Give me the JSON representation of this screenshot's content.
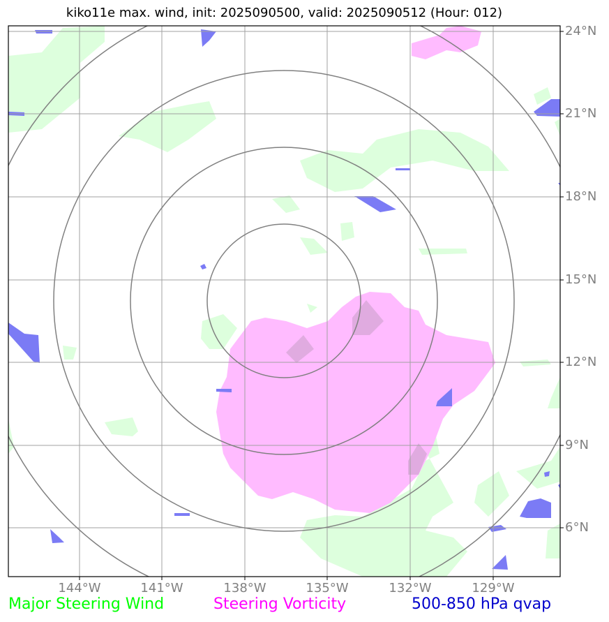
{
  "title": "kiko11e max. wind, init: 2025090500, valid: 2025090512 (Hour: 012)",
  "latitudes": [
    {
      "label": "24°N",
      "value": 24
    },
    {
      "label": "21°N",
      "value": 21
    },
    {
      "label": "18°N",
      "value": 18
    },
    {
      "label": "15°N",
      "value": 15
    },
    {
      "label": "12°N",
      "value": 12
    },
    {
      "label": "9°N",
      "value": 9
    },
    {
      "label": "6°N",
      "value": 6
    }
  ],
  "longitudes": [
    {
      "label": "144°W",
      "value": -144
    },
    {
      "label": "141°W",
      "value": -141
    },
    {
      "label": "138°W",
      "value": -138
    },
    {
      "label": "135°W",
      "value": -135
    },
    {
      "label": "132°W",
      "value": -132
    },
    {
      "label": "129°W",
      "value": -129
    }
  ],
  "legend": {
    "wind": "Major Steering Wind",
    "vorticity": "Steering Vorticity",
    "qvap": "500-850 hPa qvap"
  },
  "colors": {
    "wind": "#00ff00",
    "vorticity": "#ff00ff",
    "qvap": "#0000cc",
    "wind_fill": "#ddffdd",
    "vort_fill": "#ffbbff",
    "qvap_fill": "#7b7bf5",
    "grid": "#a0a0a0",
    "ring": "#808080"
  }
}
